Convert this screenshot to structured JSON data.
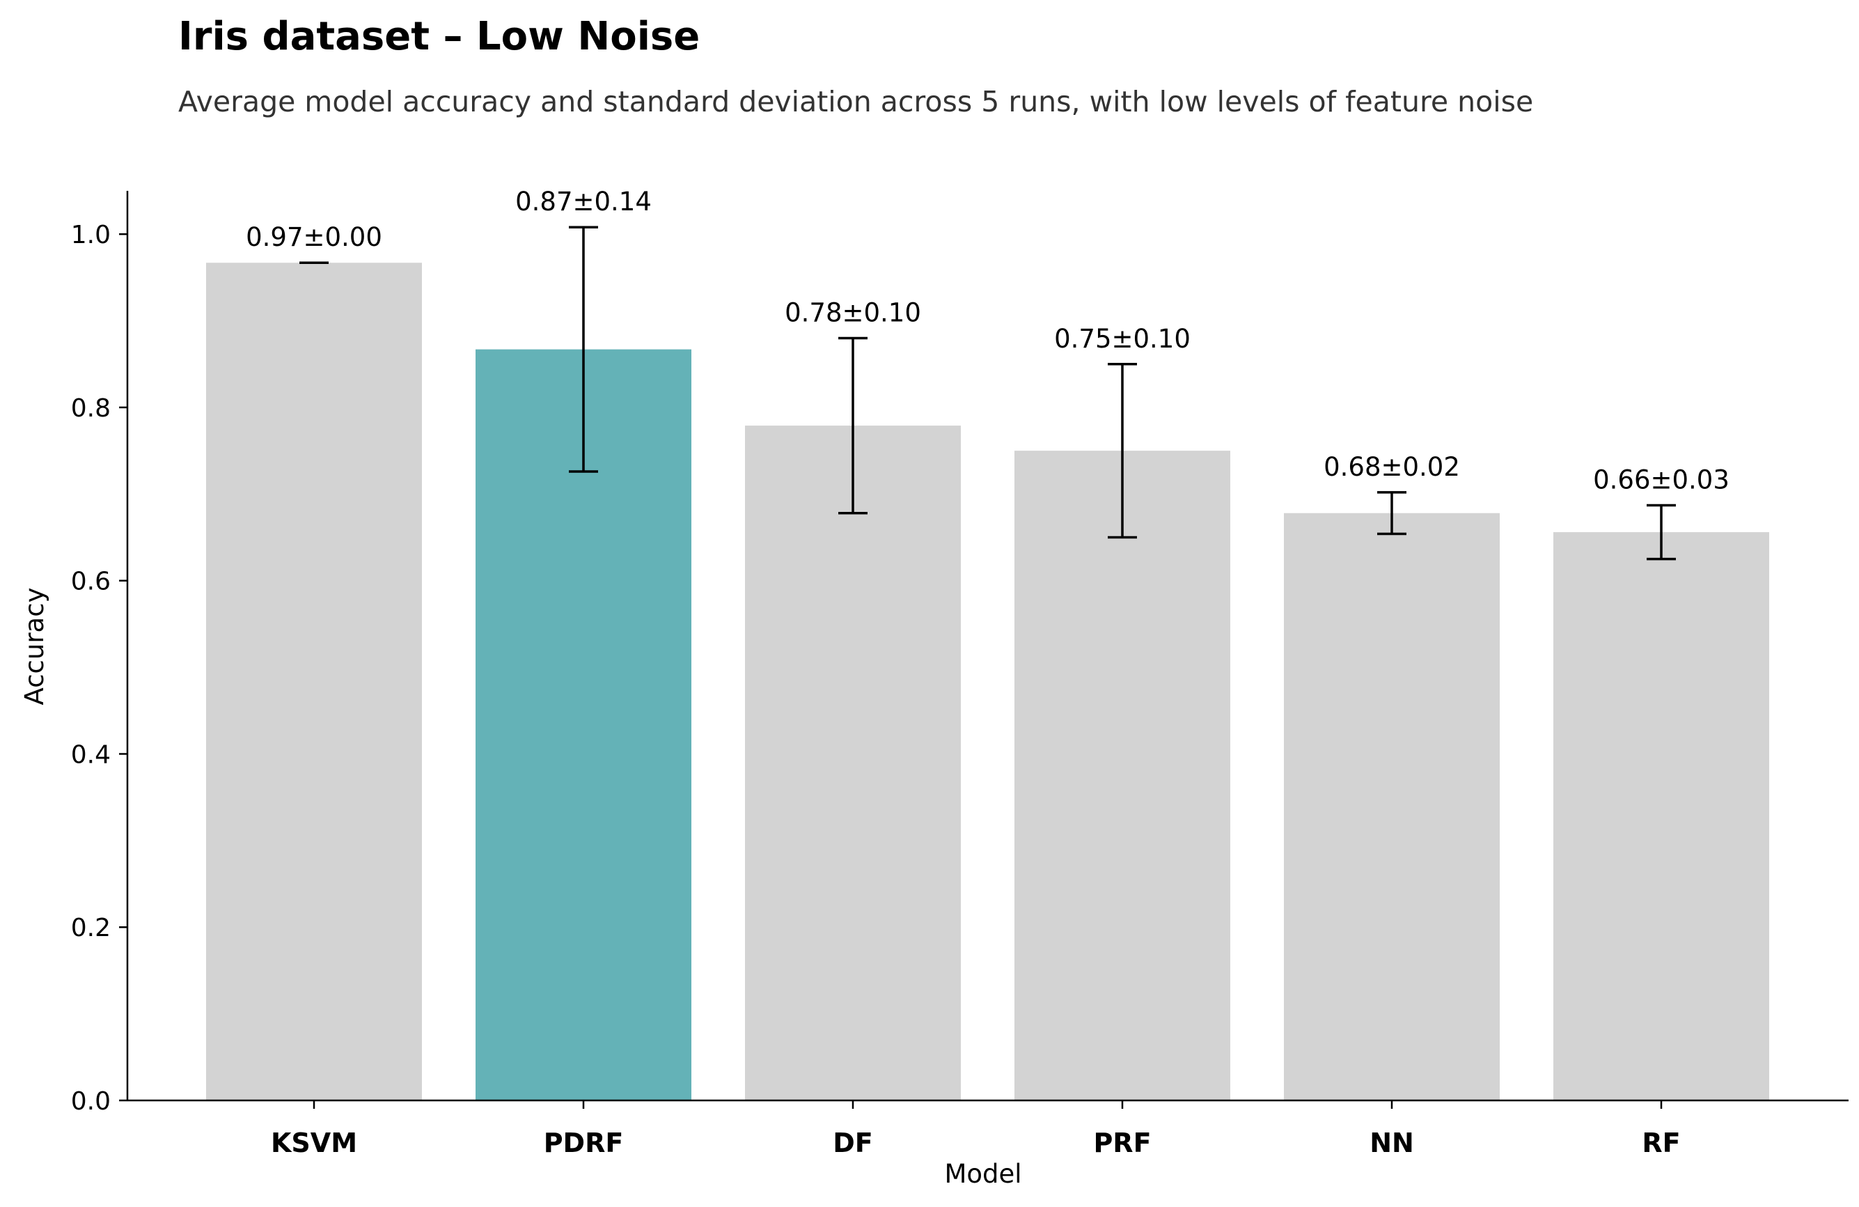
{
  "chart_data": {
    "type": "bar",
    "title": "Iris dataset – Low Noise",
    "subtitle": "Average model accuracy and standard deviation across 5 runs, with low levels of feature noise",
    "xlabel": "Model",
    "ylabel": "Accuracy",
    "categories": [
      "KSVM",
      "PDRF",
      "DF",
      "PRF",
      "NN",
      "RF"
    ],
    "values": [
      0.967,
      0.867,
      0.779,
      0.75,
      0.678,
      0.656
    ],
    "errors": [
      0.0,
      0.141,
      0.101,
      0.1,
      0.024,
      0.031
    ],
    "data_labels": [
      "0.97±0.00",
      "0.87±0.14",
      "0.78±0.10",
      "0.75±0.10",
      "0.68±0.02",
      "0.66±0.03"
    ],
    "ylim": [
      0,
      1.05
    ],
    "yticks": [
      0.0,
      0.2,
      0.4,
      0.6,
      0.8,
      1.0
    ],
    "ytick_labels": [
      "0.0",
      "0.2",
      "0.4",
      "0.6",
      "0.8",
      "1.0"
    ],
    "highlight_category": "PDRF",
    "colors": {
      "bar": "#d3d3d3",
      "highlight": "#64b2b7",
      "error_bar": "#000000",
      "axis": "#000000"
    },
    "grid": false,
    "legend": "none"
  }
}
